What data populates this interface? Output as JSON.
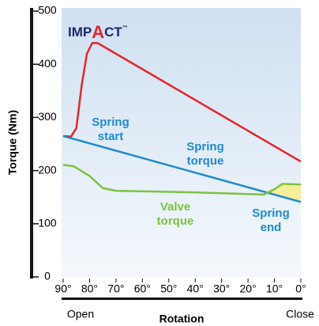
{
  "chart_data": {
    "type": "line",
    "logo": [
      "IMP",
      "A",
      "CT",
      "™"
    ],
    "ylabel": "Torque (Nm)",
    "xlabel": "Rotation",
    "x_end_labels": [
      "Open",
      "Close"
    ],
    "xlim": [
      90,
      0
    ],
    "ylim": [
      0,
      500
    ],
    "xticks": [
      {
        "value": 90,
        "label": "90°"
      },
      {
        "value": 80,
        "label": "80°"
      },
      {
        "value": 70,
        "label": "70°"
      },
      {
        "value": 60,
        "label": "60°"
      },
      {
        "value": 50,
        "label": "50°"
      },
      {
        "value": 40,
        "label": "40°"
      },
      {
        "value": 30,
        "label": "30°"
      },
      {
        "value": 20,
        "label": "20°"
      },
      {
        "value": 10,
        "label": "10°"
      },
      {
        "value": 0,
        "label": "0°"
      }
    ],
    "yticks": [
      0,
      100,
      200,
      300,
      400,
      500
    ],
    "series": [
      {
        "color": "#e3262d",
        "x": [
          90,
          87,
          85,
          83,
          81,
          79,
          77,
          0
        ],
        "values": [
          265,
          264,
          280,
          360,
          420,
          440,
          440,
          217
        ]
      },
      {
        "color": "#1f8ad0",
        "x": [
          90,
          0
        ],
        "values": [
          265,
          141
        ]
      },
      {
        "color": "#7cc242",
        "x": [
          90,
          86,
          80,
          75,
          70,
          40,
          14,
          10,
          7,
          0
        ],
        "values": [
          211,
          208,
          190,
          167,
          162,
          159,
          155,
          165,
          175,
          174
        ]
      }
    ],
    "highlight_color": "#f6ef9a",
    "annotations": [
      {
        "lines": [
          "Spring",
          "start"
        ],
        "color": "#1f8ad0"
      },
      {
        "lines": [
          "Spring",
          "torque"
        ],
        "color": "#1f8ad0"
      },
      {
        "lines": [
          "Valve",
          "torque"
        ],
        "color": "#7cc242"
      },
      {
        "lines": [
          "Spring",
          "end"
        ],
        "color": "#1f8ad0"
      }
    ]
  }
}
